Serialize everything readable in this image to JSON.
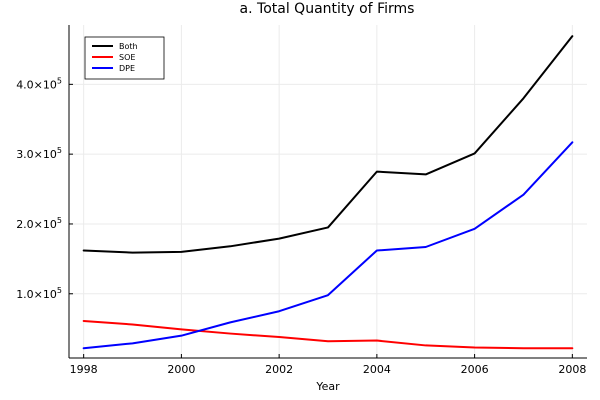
{
  "chart_data": {
    "type": "line",
    "title": "a. Total Quantity of Firms",
    "xlabel": "Year",
    "ylabel": "",
    "x": [
      1998,
      1999,
      2000,
      2001,
      2002,
      2003,
      2004,
      2005,
      2006,
      2007,
      2008
    ],
    "xlim": [
      1997.7,
      2008.3
    ],
    "ylim": [
      8000,
      485000
    ],
    "x_ticks": [
      1998,
      2000,
      2002,
      2004,
      2006,
      2008
    ],
    "x_tick_labels": [
      "1998",
      "2000",
      "2002",
      "2004",
      "2006",
      "2008"
    ],
    "y_ticks": [
      100000,
      200000,
      300000,
      400000
    ],
    "y_tick_labels": [
      {
        "mantissa": "1.0×10",
        "exp": "5"
      },
      {
        "mantissa": "2.0×10",
        "exp": "5"
      },
      {
        "mantissa": "3.0×10",
        "exp": "5"
      },
      {
        "mantissa": "4.0×10",
        "exp": "5"
      }
    ],
    "grid": true,
    "legend_position": "top-left",
    "series": [
      {
        "name": "Both",
        "color": "#000000",
        "values": [
          162000,
          159000,
          160000,
          168000,
          179000,
          195000,
          275000,
          271000,
          301000,
          380000,
          469000
        ]
      },
      {
        "name": "SOE",
        "color": "#ff0000",
        "values": [
          61000,
          56000,
          49000,
          43000,
          38000,
          32000,
          33000,
          26000,
          23000,
          22000,
          22000
        ]
      },
      {
        "name": "DPE",
        "color": "#0000ff",
        "values": [
          22000,
          29000,
          40000,
          59000,
          75000,
          98000,
          162000,
          167000,
          193000,
          242000,
          317000
        ]
      }
    ]
  }
}
